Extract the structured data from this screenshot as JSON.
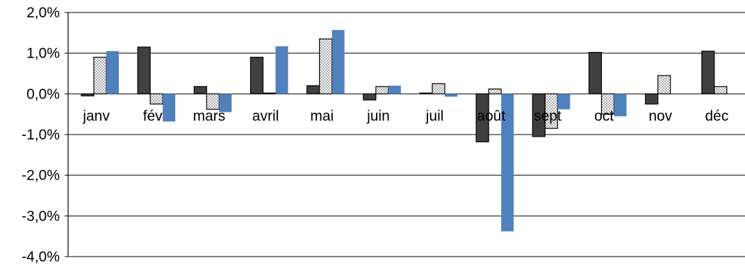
{
  "chart_data": {
    "type": "bar",
    "title": "",
    "xlabel": "",
    "ylabel": "",
    "ylim": [
      -4.0,
      2.0
    ],
    "yticks": [
      2.0,
      1.0,
      0.0,
      -1.0,
      -2.0,
      -3.0,
      -4.0
    ],
    "ytick_labels": [
      "2,0%",
      "1,0%",
      "0,0%",
      "-1,0%",
      "-2,0%",
      "-3,0%",
      "-4,0%"
    ],
    "grid": true,
    "legend": "none",
    "categories": [
      "janv",
      "fév",
      "mars",
      "avril",
      "mai",
      "juin",
      "juil",
      "août",
      "sept",
      "oct",
      "nov",
      "déc"
    ],
    "series": [
      {
        "color": "#404040",
        "pattern": "solid-dark",
        "values": [
          -0.05,
          1.15,
          0.18,
          0.9,
          0.2,
          -0.15,
          0.02,
          -1.18,
          -1.05,
          1.02,
          -0.25,
          1.05
        ]
      },
      {
        "color": "#e6e6e6",
        "pattern": "dotted",
        "values": [
          0.9,
          -0.25,
          -0.38,
          0.02,
          1.35,
          0.18,
          0.25,
          0.12,
          -0.85,
          -0.5,
          0.45,
          0.18
        ]
      },
      {
        "color": "#4f81bd",
        "pattern": "solid-blue",
        "values": [
          1.05,
          -0.68,
          -0.45,
          1.17,
          1.57,
          0.2,
          -0.07,
          -3.38,
          -0.38,
          -0.55,
          null,
          null
        ]
      }
    ]
  }
}
